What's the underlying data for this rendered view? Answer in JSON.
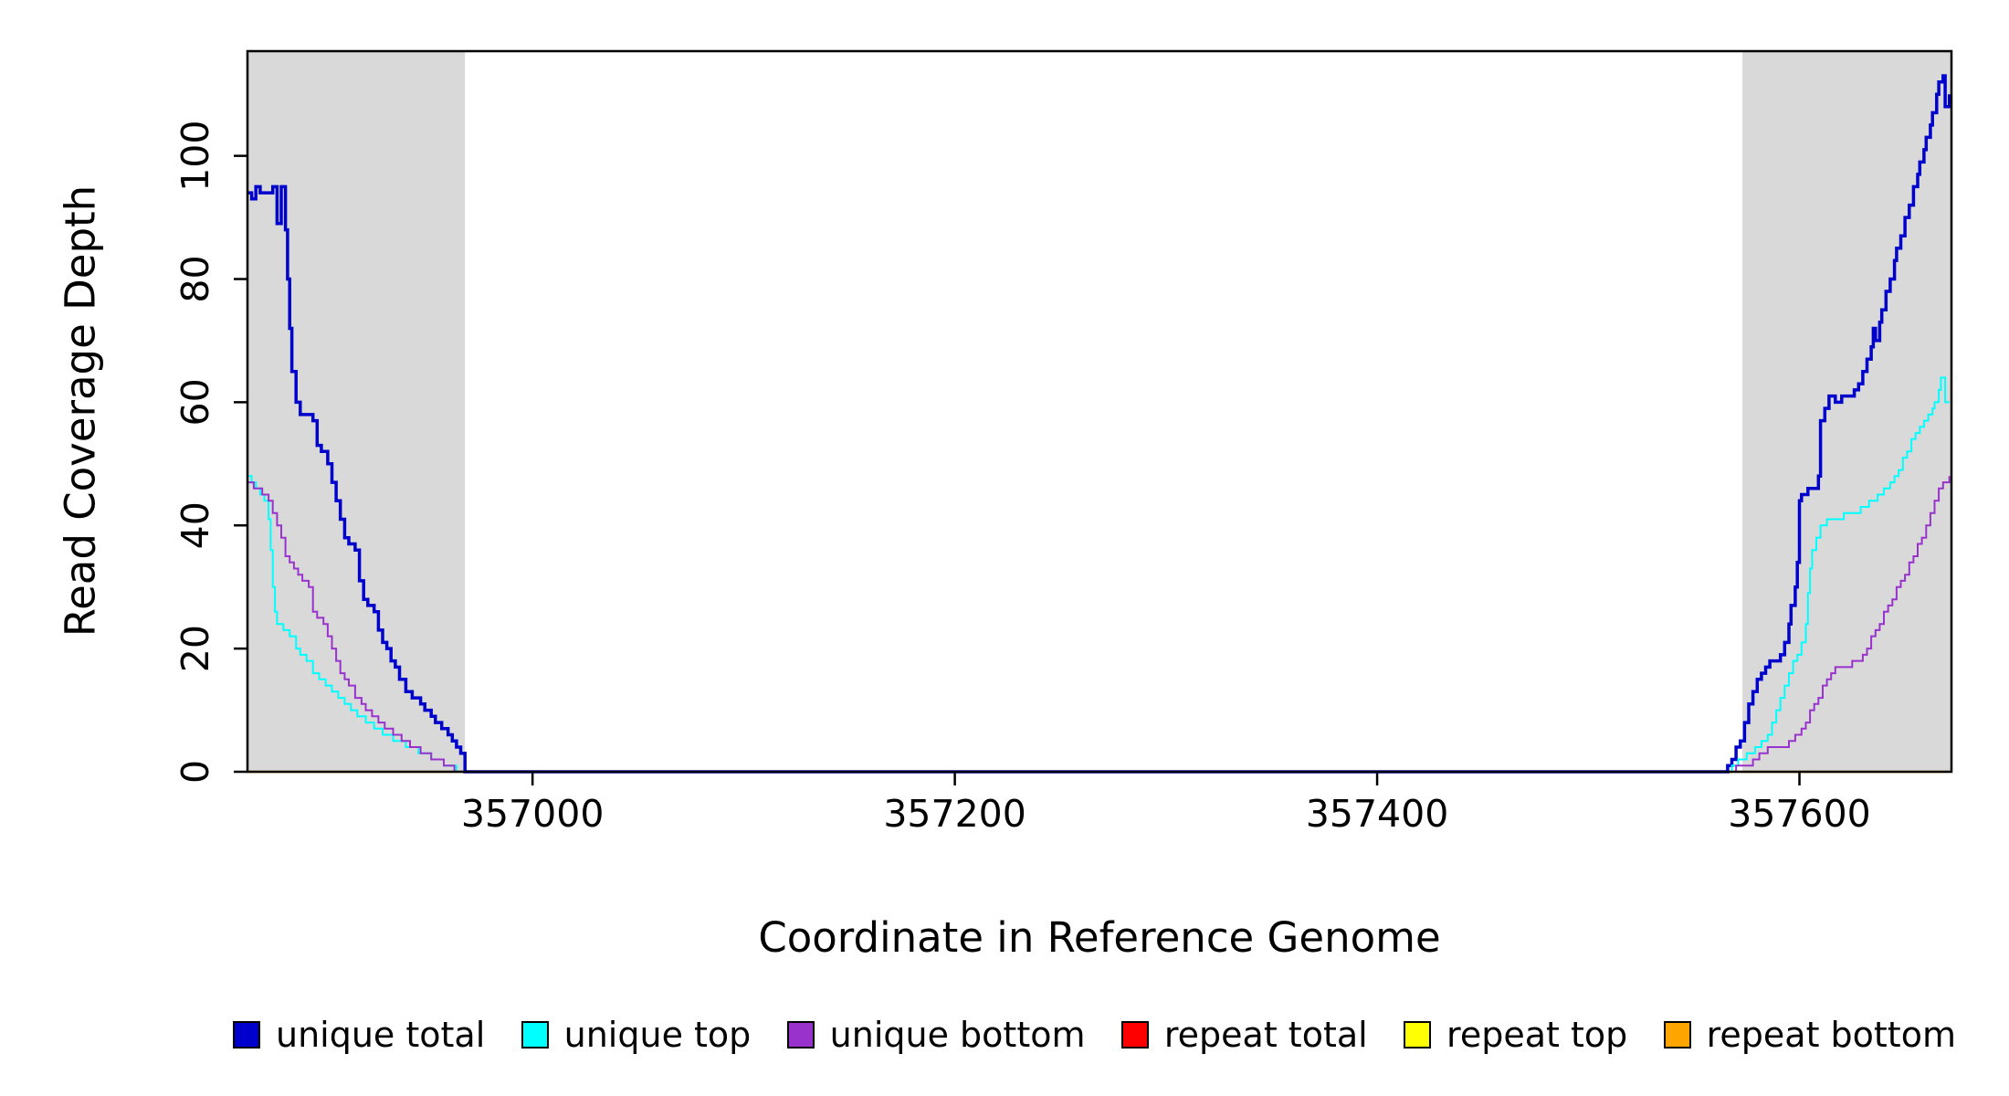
{
  "figure": {
    "xlabel": "Coordinate in Reference Genome",
    "ylabel": "Read Coverage Depth"
  },
  "chart_data": {
    "type": "line",
    "title": "",
    "xlabel": "Coordinate in Reference Genome",
    "ylabel": "Read Coverage Depth",
    "xlim": [
      356865,
      357672
    ],
    "ylim": [
      0,
      117
    ],
    "x_ticks": [
      357000,
      357200,
      357400,
      357600
    ],
    "y_ticks": [
      0,
      20,
      40,
      60,
      80,
      100
    ],
    "grid": false,
    "step": true,
    "legend_position": "bottom",
    "shaded_regions": [
      {
        "x0": 356865,
        "x1": 356968,
        "color": "#D9D9D9"
      },
      {
        "x0": 357573,
        "x1": 357672,
        "color": "#D9D9D9"
      }
    ],
    "series": [
      {
        "name": "repeat total",
        "color": "#FF0000",
        "width": 2,
        "points": [
          [
            356865,
            0
          ],
          [
            357671,
            0
          ]
        ]
      },
      {
        "name": "repeat top",
        "color": "#FFFF00",
        "width": 2,
        "points": [
          [
            356865,
            0
          ],
          [
            357671,
            0
          ]
        ]
      },
      {
        "name": "repeat bottom",
        "color": "#FFA500",
        "width": 2.5,
        "points": [
          [
            356865,
            0
          ],
          [
            357671,
            0
          ]
        ]
      },
      {
        "name": "unique total",
        "color": "#0000CD",
        "width": 3.5,
        "points": [
          [
            356865,
            94
          ],
          [
            356867,
            93
          ],
          [
            356869,
            95
          ],
          [
            356871,
            94
          ],
          [
            356874,
            94
          ],
          [
            356877,
            95
          ],
          [
            356879,
            89
          ],
          [
            356881,
            95
          ],
          [
            356883,
            88
          ],
          [
            356884,
            80
          ],
          [
            356885,
            72
          ],
          [
            356886,
            65
          ],
          [
            356888,
            60
          ],
          [
            356890,
            58
          ],
          [
            356896,
            57
          ],
          [
            356898,
            53
          ],
          [
            356900,
            52
          ],
          [
            356903,
            50
          ],
          [
            356905,
            47
          ],
          [
            356907,
            44
          ],
          [
            356909,
            41
          ],
          [
            356911,
            38
          ],
          [
            356913,
            37
          ],
          [
            356916,
            36
          ],
          [
            356918,
            31
          ],
          [
            356920,
            28
          ],
          [
            356922,
            27
          ],
          [
            356925,
            26
          ],
          [
            356927,
            23
          ],
          [
            356929,
            21
          ],
          [
            356931,
            20
          ],
          [
            356933,
            18
          ],
          [
            356935,
            17
          ],
          [
            356937,
            15
          ],
          [
            356940,
            13
          ],
          [
            356943,
            12
          ],
          [
            356947,
            11
          ],
          [
            356949,
            10
          ],
          [
            356952,
            9
          ],
          [
            356954,
            8
          ],
          [
            356957,
            7
          ],
          [
            356960,
            6
          ],
          [
            356962,
            5
          ],
          [
            356964,
            4
          ],
          [
            356966,
            3
          ],
          [
            356968,
            0
          ],
          [
            357564,
            0
          ],
          [
            357566,
            1
          ],
          [
            357568,
            2
          ],
          [
            357570,
            4
          ],
          [
            357572,
            5
          ],
          [
            357574,
            8
          ],
          [
            357576,
            11
          ],
          [
            357578,
            13
          ],
          [
            357580,
            15
          ],
          [
            357582,
            16
          ],
          [
            357584,
            17
          ],
          [
            357586,
            18
          ],
          [
            357591,
            19
          ],
          [
            357593,
            21
          ],
          [
            357595,
            24
          ],
          [
            357596,
            27
          ],
          [
            357598,
            30
          ],
          [
            357599,
            34
          ],
          [
            357600,
            44
          ],
          [
            357601,
            45
          ],
          [
            357604,
            46
          ],
          [
            357607,
            46
          ],
          [
            357609,
            48
          ],
          [
            357610,
            57
          ],
          [
            357612,
            59
          ],
          [
            357614,
            61
          ],
          [
            357617,
            60
          ],
          [
            357620,
            61
          ],
          [
            357624,
            61
          ],
          [
            357626,
            62
          ],
          [
            357628,
            63
          ],
          [
            357630,
            65
          ],
          [
            357632,
            67
          ],
          [
            357634,
            69
          ],
          [
            357635,
            72
          ],
          [
            357636,
            70
          ],
          [
            357638,
            73
          ],
          [
            357639,
            75
          ],
          [
            357641,
            78
          ],
          [
            357643,
            80
          ],
          [
            357645,
            83
          ],
          [
            357646,
            85
          ],
          [
            357648,
            87
          ],
          [
            357650,
            90
          ],
          [
            357652,
            92
          ],
          [
            357654,
            95
          ],
          [
            357656,
            97
          ],
          [
            357657,
            99
          ],
          [
            357659,
            101
          ],
          [
            357660,
            103
          ],
          [
            357662,
            105
          ],
          [
            357663,
            107
          ],
          [
            357665,
            110
          ],
          [
            357666,
            112
          ],
          [
            357668,
            113
          ],
          [
            357669,
            108
          ],
          [
            357671,
            110
          ]
        ]
      },
      {
        "name": "unique top",
        "color": "#00FFFF",
        "width": 2,
        "points": [
          [
            356865,
            48
          ],
          [
            356867,
            47
          ],
          [
            356869,
            46
          ],
          [
            356871,
            45
          ],
          [
            356873,
            44
          ],
          [
            356875,
            41
          ],
          [
            356876,
            36
          ],
          [
            356877,
            30
          ],
          [
            356878,
            26
          ],
          [
            356879,
            24
          ],
          [
            356882,
            23
          ],
          [
            356885,
            22
          ],
          [
            356888,
            20
          ],
          [
            356890,
            19
          ],
          [
            356893,
            18
          ],
          [
            356896,
            16
          ],
          [
            356899,
            15
          ],
          [
            356902,
            14
          ],
          [
            356905,
            13
          ],
          [
            356908,
            12
          ],
          [
            356911,
            11
          ],
          [
            356914,
            10
          ],
          [
            356917,
            9
          ],
          [
            356921,
            8
          ],
          [
            356925,
            7
          ],
          [
            356929,
            6
          ],
          [
            356934,
            5
          ],
          [
            356940,
            4
          ],
          [
            356946,
            3
          ],
          [
            356952,
            2
          ],
          [
            356958,
            1
          ],
          [
            356964,
            0
          ],
          [
            357565,
            0
          ],
          [
            357568,
            1
          ],
          [
            357571,
            2
          ],
          [
            357575,
            3
          ],
          [
            357579,
            4
          ],
          [
            357582,
            5
          ],
          [
            357585,
            6
          ],
          [
            357587,
            8
          ],
          [
            357589,
            10
          ],
          [
            357591,
            12
          ],
          [
            357593,
            14
          ],
          [
            357595,
            16
          ],
          [
            357597,
            18
          ],
          [
            357599,
            19
          ],
          [
            357601,
            21
          ],
          [
            357603,
            24
          ],
          [
            357604,
            29
          ],
          [
            357605,
            33
          ],
          [
            357606,
            36
          ],
          [
            357608,
            38
          ],
          [
            357610,
            40
          ],
          [
            357613,
            41
          ],
          [
            357617,
            41
          ],
          [
            357621,
            42
          ],
          [
            357625,
            42
          ],
          [
            357629,
            43
          ],
          [
            357633,
            44
          ],
          [
            357637,
            45
          ],
          [
            357640,
            46
          ],
          [
            357643,
            47
          ],
          [
            357645,
            48
          ],
          [
            357647,
            49
          ],
          [
            357649,
            51
          ],
          [
            357651,
            52
          ],
          [
            357653,
            54
          ],
          [
            357655,
            55
          ],
          [
            357657,
            56
          ],
          [
            357659,
            57
          ],
          [
            357661,
            58
          ],
          [
            357663,
            59
          ],
          [
            357664,
            60
          ],
          [
            357666,
            62
          ],
          [
            357667,
            64
          ],
          [
            357669,
            60
          ],
          [
            357671,
            60
          ]
        ]
      },
      {
        "name": "unique bottom",
        "color": "#9932CC",
        "width": 2,
        "points": [
          [
            356865,
            47
          ],
          [
            356868,
            46
          ],
          [
            356872,
            45
          ],
          [
            356875,
            44
          ],
          [
            356877,
            42
          ],
          [
            356879,
            40
          ],
          [
            356881,
            38
          ],
          [
            356883,
            35
          ],
          [
            356885,
            34
          ],
          [
            356887,
            33
          ],
          [
            356889,
            32
          ],
          [
            356891,
            31
          ],
          [
            356894,
            30
          ],
          [
            356896,
            26
          ],
          [
            356898,
            25
          ],
          [
            356901,
            24
          ],
          [
            356903,
            22
          ],
          [
            356905,
            20
          ],
          [
            356907,
            18
          ],
          [
            356909,
            16
          ],
          [
            356911,
            15
          ],
          [
            356913,
            14
          ],
          [
            356916,
            12
          ],
          [
            356919,
            11
          ],
          [
            356921,
            10
          ],
          [
            356924,
            9
          ],
          [
            356927,
            8
          ],
          [
            356930,
            7
          ],
          [
            356934,
            6
          ],
          [
            356938,
            5
          ],
          [
            356942,
            4
          ],
          [
            356947,
            3
          ],
          [
            356952,
            2
          ],
          [
            356958,
            1
          ],
          [
            356963,
            0
          ],
          [
            357566,
            0
          ],
          [
            357570,
            1
          ],
          [
            357575,
            1
          ],
          [
            357578,
            2
          ],
          [
            357581,
            3
          ],
          [
            357585,
            4
          ],
          [
            357591,
            4
          ],
          [
            357595,
            5
          ],
          [
            357598,
            6
          ],
          [
            357601,
            7
          ],
          [
            357603,
            8
          ],
          [
            357605,
            10
          ],
          [
            357607,
            11
          ],
          [
            357609,
            12
          ],
          [
            357611,
            14
          ],
          [
            357613,
            15
          ],
          [
            357615,
            16
          ],
          [
            357617,
            17
          ],
          [
            357622,
            17
          ],
          [
            357625,
            18
          ],
          [
            357628,
            18
          ],
          [
            357630,
            19
          ],
          [
            357632,
            20
          ],
          [
            357634,
            22
          ],
          [
            357636,
            23
          ],
          [
            357638,
            24
          ],
          [
            357640,
            26
          ],
          [
            357642,
            27
          ],
          [
            357644,
            28
          ],
          [
            357646,
            30
          ],
          [
            357648,
            31
          ],
          [
            357650,
            32
          ],
          [
            357652,
            34
          ],
          [
            357654,
            35
          ],
          [
            357656,
            37
          ],
          [
            357658,
            38
          ],
          [
            357660,
            40
          ],
          [
            357662,
            42
          ],
          [
            357664,
            44
          ],
          [
            357666,
            46
          ],
          [
            357668,
            47
          ],
          [
            357671,
            48
          ]
        ]
      }
    ]
  },
  "legend": {
    "items": [
      {
        "label": "unique total",
        "color": "#0000CD"
      },
      {
        "label": "unique top",
        "color": "#00FFFF"
      },
      {
        "label": "unique bottom",
        "color": "#9932CC"
      },
      {
        "label": "repeat total",
        "color": "#FF0000"
      },
      {
        "label": "repeat top",
        "color": "#FFFF00"
      },
      {
        "label": "repeat bottom",
        "color": "#FFA500"
      }
    ]
  }
}
